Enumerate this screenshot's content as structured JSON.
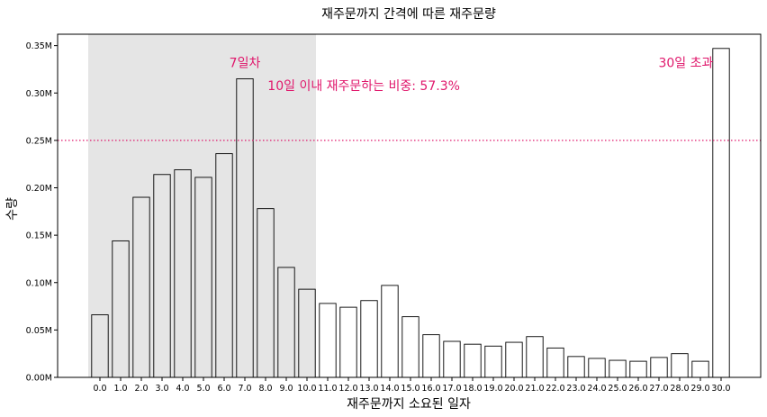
{
  "chart_data": {
    "type": "bar",
    "title": "재주문까지 간격에 따른 재주문량",
    "xlabel": "재주문까지 소요된 일자",
    "ylabel": "수량",
    "categories": [
      "0.0",
      "1.0",
      "2.0",
      "3.0",
      "4.0",
      "5.0",
      "6.0",
      "7.0",
      "8.0",
      "9.0",
      "10.0",
      "11.0",
      "12.0",
      "13.0",
      "14.0",
      "15.0",
      "16.0",
      "17.0",
      "18.0",
      "19.0",
      "20.0",
      "21.0",
      "22.0",
      "23.0",
      "24.0",
      "25.0",
      "26.0",
      "27.0",
      "28.0",
      "29.0",
      "30.0"
    ],
    "values": [
      0.066,
      0.144,
      0.19,
      0.214,
      0.219,
      0.211,
      0.236,
      0.315,
      0.178,
      0.116,
      0.093,
      0.078,
      0.074,
      0.081,
      0.097,
      0.064,
      0.045,
      0.038,
      0.035,
      0.033,
      0.037,
      0.043,
      0.031,
      0.022,
      0.02,
      0.018,
      0.017,
      0.021,
      0.025,
      0.017,
      0.347
    ],
    "value_unit": "M",
    "ylim": [
      0,
      0.362
    ],
    "yticks": [
      "0.00M",
      "0.05M",
      "0.10M",
      "0.15M",
      "0.20M",
      "0.25M",
      "0.30M",
      "0.35M"
    ],
    "ytick_values": [
      0,
      0.05,
      0.1,
      0.15,
      0.2,
      0.25,
      0.3,
      0.35
    ],
    "highlight_range": [
      0,
      10
    ],
    "highlight_color": "#e5e5e5",
    "bar_fill_in_range": "#e5e5e5",
    "bar_fill": "#ffffff",
    "bar_edge": "#000000",
    "threshold_line": {
      "value": 0.25,
      "color": "#e0186c"
    },
    "annotations": [
      {
        "text": "7일차",
        "x": 7,
        "y": 0.332,
        "color": "#e0186c",
        "anchor": "middle"
      },
      {
        "text": "10일 이내 재주문하는 비중: 57.3%",
        "x": 8.1,
        "y": 0.308,
        "color": "#e0186c",
        "anchor": "start"
      },
      {
        "text": "30일 초과",
        "x": 28.3,
        "y": 0.332,
        "color": "#e0186c",
        "anchor": "middle"
      }
    ],
    "grid": false,
    "legend": "none"
  }
}
